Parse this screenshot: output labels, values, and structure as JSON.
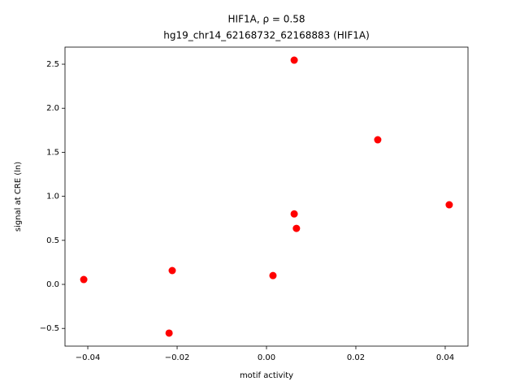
{
  "chart_data": {
    "type": "scatter",
    "title": "HIF1A, ρ = 0.58",
    "subtitle": "hg19_chr14_62168732_62168883 (HIF1A)",
    "x_label": "motif activity",
    "y_label": "signal at CRE (ln)",
    "color": "#ff0000",
    "x": [
      -0.0409,
      -0.0211,
      -0.0218,
      0.00145,
      0.0062,
      0.0062,
      0.0067,
      0.0249,
      0.0409
    ],
    "values": [
      0.055,
      0.157,
      -0.553,
      0.1,
      2.546,
      0.8,
      0.636,
      1.642,
      0.904
    ],
    "xlim": [
      -0.0451,
      0.0451
    ],
    "ylim": [
      -0.701,
      2.694
    ],
    "xticks": [
      {
        "value": -0.04,
        "label": "−0.04"
      },
      {
        "value": -0.02,
        "label": "−0.02"
      },
      {
        "value": 0,
        "label": "0.00"
      },
      {
        "value": 0.02,
        "label": "0.02"
      },
      {
        "value": 0.04,
        "label": "0.04"
      }
    ],
    "yticks": [
      {
        "value": -0.5,
        "label": "−0.5"
      },
      {
        "value": 0,
        "label": "0.0"
      },
      {
        "value": 0.5,
        "label": "0.5"
      },
      {
        "value": 1,
        "label": "1.0"
      },
      {
        "value": 1.5,
        "label": "1.5"
      },
      {
        "value": 2,
        "label": "2.0"
      },
      {
        "value": 2.5,
        "label": "2.5"
      }
    ],
    "grid": false
  }
}
